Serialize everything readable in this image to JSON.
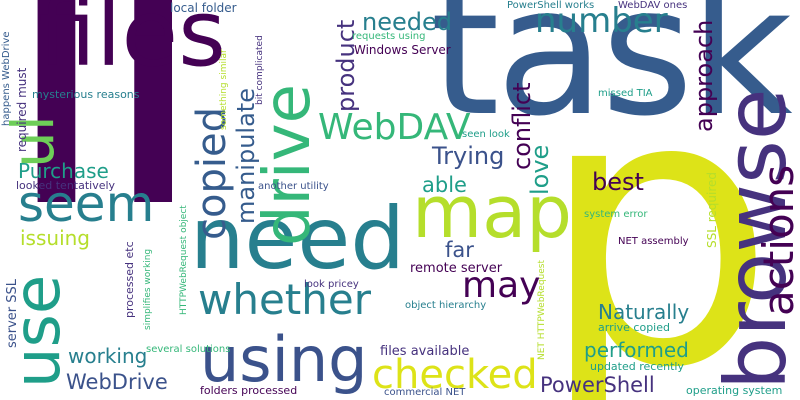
{
  "title": "Word cloud",
  "palette": {
    "dark_purple": "#440154",
    "indigo": "#46327e",
    "blue": "#365c8d",
    "steel_blue": "#3b528b",
    "teal_blue": "#277f8e",
    "teal": "#1f9e89",
    "green": "#35b779",
    "light_green": "#6ece58",
    "lime": "#b5de2b",
    "yellow": "#dde318"
  },
  "words": {
    "li": "li",
    "p": "p",
    "task": "task",
    "files": "files",
    "browse": "browse",
    "need": "need",
    "map": "map",
    "use": "use",
    "drive": "drive",
    "using": "using",
    "seem": "seem",
    "ul": "ul",
    "whether": "whether",
    "checked": "checked",
    "copied": "copied",
    "actions": "actions",
    "number": "number",
    "WebDAV": "WebDAV",
    "may": "may",
    "approach": "approach",
    "manipulate": "manipulate",
    "needed": "needed",
    "product": "product",
    "conflict": "conflict",
    "Trying": "Trying",
    "best": "best",
    "able": "able",
    "love": "love",
    "far": "far",
    "Purchase": "Purchase",
    "issuing": "issuing",
    "working": "working",
    "WebDrive": "WebDrive",
    "PowerShell": "PowerShell",
    "performed": "performed",
    "Naturally": "Naturally",
    "remote_server": "remote server",
    "files_available": "files available",
    "local_folder": "local folder",
    "Windows_Server": "Windows Server",
    "requests_using": "requests using",
    "PowerShell_works": "PowerShell works",
    "WebDAV_ones": "WebDAV ones",
    "mysterious_reasons": "mysterious reasons",
    "looked_tentatively": "looked tentatively",
    "another_utility": "another utility",
    "seen_look": "seen look",
    "missed_TIA": "missed TIA",
    "system_error": "system error",
    "NET_assembly": "NET assembly",
    "look_pricey": "look pricey",
    "object_hierarchy": "object hierarchy",
    "several_solutions": "several solutions",
    "arrive_copied": "arrive copied",
    "updated_recently": "updated recently",
    "folders_processed": "folders processed",
    "commercial_NET": "commercial NET",
    "operating_system": "operating system",
    "required_must": "required must",
    "happens_WebDrive": "happens WebDrive",
    "server_SSL": "server SSL",
    "processed_etc": "processed etc",
    "HTTPWebRequest_object": "HTTPWebRequest object",
    "simplifies_working": "simplifies working",
    "something_similar": "something similar",
    "bit_complicated": "bit complicated",
    "SSL_required": "SSL required",
    "NET_HTTPWebRequest": "NET HTTPWebRequest"
  }
}
